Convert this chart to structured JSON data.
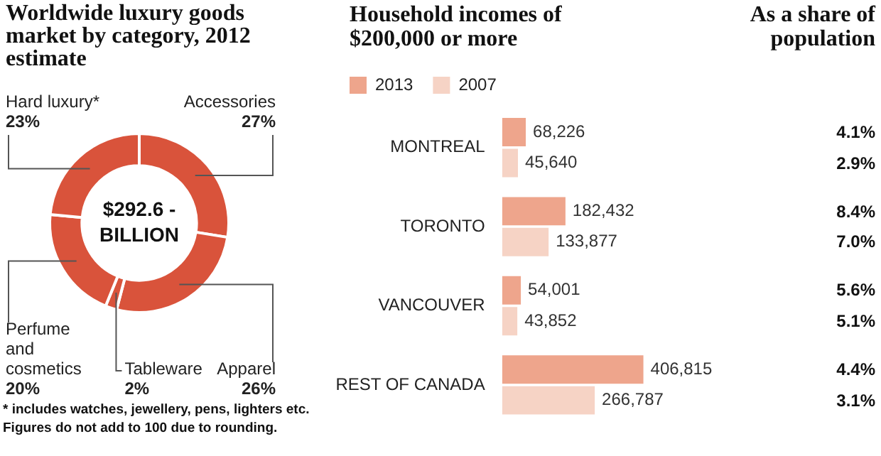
{
  "chart_data": [
    {
      "type": "donut",
      "title": "Worldwide luxury goods market by category, 2012 estimate",
      "categories": [
        "Accessories",
        "Apparel",
        "Tableware",
        "Perfume and cosmetics",
        "Hard luxury*"
      ],
      "values": [
        27,
        26,
        2,
        20,
        23
      ],
      "value_labels": [
        "27%",
        "26%",
        "2%",
        "20%",
        "23%"
      ],
      "colors": [
        "#d9533b",
        "#d9533b",
        "#d9533b",
        "#d9533b",
        "#d9533b"
      ],
      "annotations": [
        "$292.6 - BILLION",
        "* includes watches, jewellery, pens, lighters etc.",
        "Figures do not add to 100 due to rounding."
      ]
    },
    {
      "type": "bar",
      "orientation": "horizontal",
      "title": "Household incomes of $200,000 or more",
      "categories": [
        "MONTREAL",
        "TORONTO",
        "VANCOUVER",
        "REST OF CANADA"
      ],
      "series": [
        {
          "name": "2013",
          "color": "#eea58c",
          "values": [
            68226,
            182432,
            54001,
            406815
          ],
          "value_labels": [
            "68,226",
            "182,432",
            "54,001",
            "406,815"
          ]
        },
        {
          "name": "2007",
          "color": "#f6d3c5",
          "values": [
            45640,
            133877,
            43852,
            266787
          ],
          "value_labels": [
            "45,640",
            "133,877",
            "43,852",
            "266,787"
          ]
        }
      ],
      "legend": "top left"
    },
    {
      "type": "other",
      "title": "As a share of population",
      "annotations": [
        "4.1%",
        "2.9%",
        "8.4%",
        "7.0%",
        "5.6%",
        "5.1%",
        "4.4%",
        "3.1%"
      ]
    }
  ]
}
